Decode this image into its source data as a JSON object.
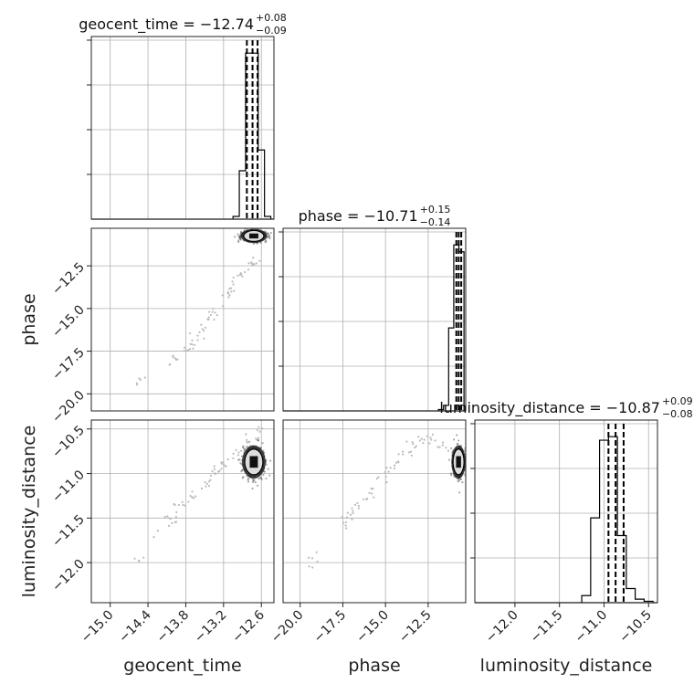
{
  "chart_data": {
    "type": "scatter",
    "kind": "corner-plot",
    "parameters": [
      "geocent_time",
      "phase",
      "luminosity_distance"
    ],
    "axes": {
      "geocent_time": {
        "xlabel": "geocent_time",
        "range": [
          -15.3,
          -12.4
        ],
        "ticks": [
          -15.0,
          -14.4,
          -13.8,
          -13.2,
          -12.6
        ],
        "tick_labels": [
          "−15.0",
          "−14.4",
          "−13.8",
          "−13.2",
          "−12.6"
        ]
      },
      "phase": {
        "xlabel": "phase",
        "ylabel": "phase",
        "range": [
          -21.0,
          -10.3
        ],
        "ticks": [
          -20.0,
          -17.5,
          -15.0,
          -12.5
        ],
        "tick_labels": [
          "−20.0",
          "−17.5",
          "−15.0",
          "−12.5"
        ]
      },
      "luminosity_distance": {
        "xlabel": "luminosity_distance",
        "ylabel": "luminosity_distance",
        "range": [
          -12.45,
          -10.4
        ],
        "ticks": [
          -12.0,
          -11.5,
          -11.0,
          -10.5
        ],
        "tick_labels": [
          "−12.0",
          "−11.5",
          "−11.0",
          "−10.5"
        ]
      }
    },
    "titles": [
      {
        "param": "geocent_time",
        "prefix": "geocent_time = −12.74",
        "sup": "+0.08",
        "sub": "−0.09"
      },
      {
        "param": "phase",
        "prefix": "phase = −10.71",
        "sup": "+0.15",
        "sub": "−0.14"
      },
      {
        "param": "luminosity_distance",
        "prefix": "luminosity_distance = −10.87",
        "sup": "+0.09",
        "sub": "−0.08"
      }
    ],
    "medians": {
      "geocent_time": -12.74,
      "phase": -10.71,
      "luminosity_distance": -10.87
    },
    "quantiles": {
      "geocent_time": [
        -12.83,
        -12.74,
        -12.66
      ],
      "phase": [
        -10.85,
        -10.71,
        -10.56
      ],
      "luminosity_distance": [
        -10.95,
        -10.87,
        -10.78
      ]
    },
    "histograms": {
      "geocent_time": {
        "bins": [
          -13.05,
          -12.95,
          -12.85,
          -12.75,
          -12.65,
          -12.55,
          -12.45
        ],
        "counts": [
          4,
          70,
          240,
          240,
          100,
          4
        ]
      },
      "phase": {
        "bins": [
          -11.9,
          -11.6,
          -11.3,
          -11.0,
          -10.7,
          -10.4
        ],
        "counts": [
          2,
          8,
          120,
          240,
          230
        ]
      },
      "luminosity_distance": {
        "bins": [
          -11.25,
          -11.15,
          -11.05,
          -10.95,
          -10.85,
          -10.75,
          -10.65,
          -10.55,
          -10.45
        ],
        "counts": [
          10,
          120,
          230,
          235,
          95,
          20,
          5,
          2
        ]
      }
    },
    "scatter_outliers": {
      "geocent_time_vs_phase": [
        [
          -14.6,
          -19.6
        ],
        [
          -14.0,
          -17.9
        ],
        [
          -13.9,
          -17.8
        ],
        [
          -13.75,
          -17.2
        ],
        [
          -13.6,
          -16.5
        ],
        [
          -13.5,
          -16.0
        ],
        [
          -13.35,
          -15.4
        ],
        [
          -13.2,
          -14.6
        ],
        [
          -13.1,
          -14.0
        ],
        [
          -13.0,
          -13.3
        ],
        [
          -12.9,
          -12.8
        ],
        [
          -12.75,
          -12.4
        ],
        [
          -12.65,
          -12.0
        ]
      ],
      "geocent_time_vs_luminosity_distance": [
        [
          -14.6,
          -12.05
        ],
        [
          -14.1,
          -11.5
        ],
        [
          -14.0,
          -11.6
        ],
        [
          -13.9,
          -11.4
        ],
        [
          -13.7,
          -11.3
        ],
        [
          -13.5,
          -11.15
        ],
        [
          -13.4,
          -11.05
        ],
        [
          -13.3,
          -10.95
        ],
        [
          -13.2,
          -10.9
        ],
        [
          -13.0,
          -10.8
        ],
        [
          -12.9,
          -10.7
        ],
        [
          -12.7,
          -10.6
        ],
        [
          -12.6,
          -10.5
        ]
      ],
      "phase_vs_luminosity_distance": [
        [
          -19.7,
          -12.05
        ],
        [
          -17.6,
          -11.65
        ],
        [
          -17.2,
          -11.5
        ],
        [
          -16.8,
          -11.4
        ],
        [
          -16.2,
          -11.3
        ],
        [
          -15.6,
          -11.15
        ],
        [
          -15.0,
          -11.0
        ],
        [
          -14.4,
          -10.9
        ],
        [
          -13.8,
          -10.75
        ],
        [
          -13.2,
          -10.65
        ],
        [
          -12.6,
          -10.6
        ],
        [
          -12.0,
          -10.65
        ],
        [
          -11.5,
          -10.7
        ]
      ]
    },
    "cores": {
      "geocent_time_vs_phase": {
        "cx": -12.72,
        "cy": -10.75,
        "sx": 0.1,
        "sy": 0.17
      },
      "geocent_time_vs_luminosity_distance": {
        "cx": -12.72,
        "cy": -10.87,
        "sx": 0.09,
        "sy": 0.09
      },
      "phase_vs_luminosity_distance": {
        "cx": -10.72,
        "cy": -10.87,
        "sx": 0.17,
        "sy": 0.09
      }
    },
    "grid": true
  }
}
